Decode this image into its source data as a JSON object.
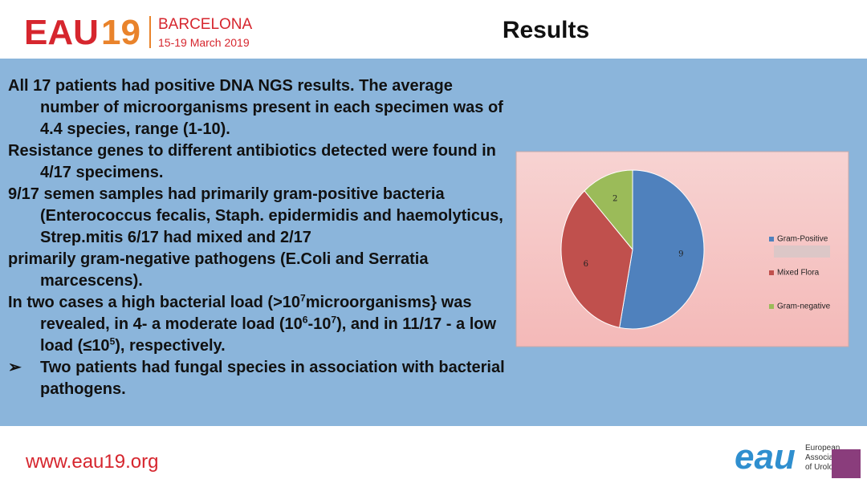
{
  "header": {
    "logo": "EAU",
    "logo_year": "19",
    "city": "BARCELONA",
    "dates": "15-19 March 2019",
    "title": "Results"
  },
  "paragraphs": [
    [
      "All 17 patients had positive DNA NGS results. The average number of microorganisms present in each specimen was of 4.4 species, range (1-10)."
    ],
    [
      "Resistance genes to different antibiotics  detected were found in 4/17 specimens."
    ],
    [
      "9/17 semen samples had primarily gram-positive bacteria (Enterococcus fecalis, Staph. epidermidis and haemolyticus, Strep.mitis  6/17 had mixed and 2/17"
    ],
    [
      "primarily gram-negative pathogens (E.Coli and Serratia marcescens)."
    ],
    [
      "In two cases a high bacterial load (>10",
      "7",
      "microorganisms} was revealed, in 4- a moderate load (10",
      "6",
      "-10",
      "7",
      "), and in 11/17 - a low load (≤10",
      "5",
      "), respectively."
    ]
  ],
  "bullet": {
    "marker": "➢",
    "text": "Two patients had fungal species in association with bacterial pathogens."
  },
  "chart_data": {
    "type": "pie",
    "categories": [
      "Gram-Positive",
      "Mixed Flora",
      "Gram-negative"
    ],
    "values": [
      9,
      6,
      2
    ],
    "colors": [
      "#4f81bd",
      "#c0504d",
      "#9bbb59"
    ]
  },
  "footer": {
    "url": "www.eau19.org",
    "org_logo": "eau",
    "org_name": [
      "European",
      "Association",
      "of Urology"
    ]
  }
}
